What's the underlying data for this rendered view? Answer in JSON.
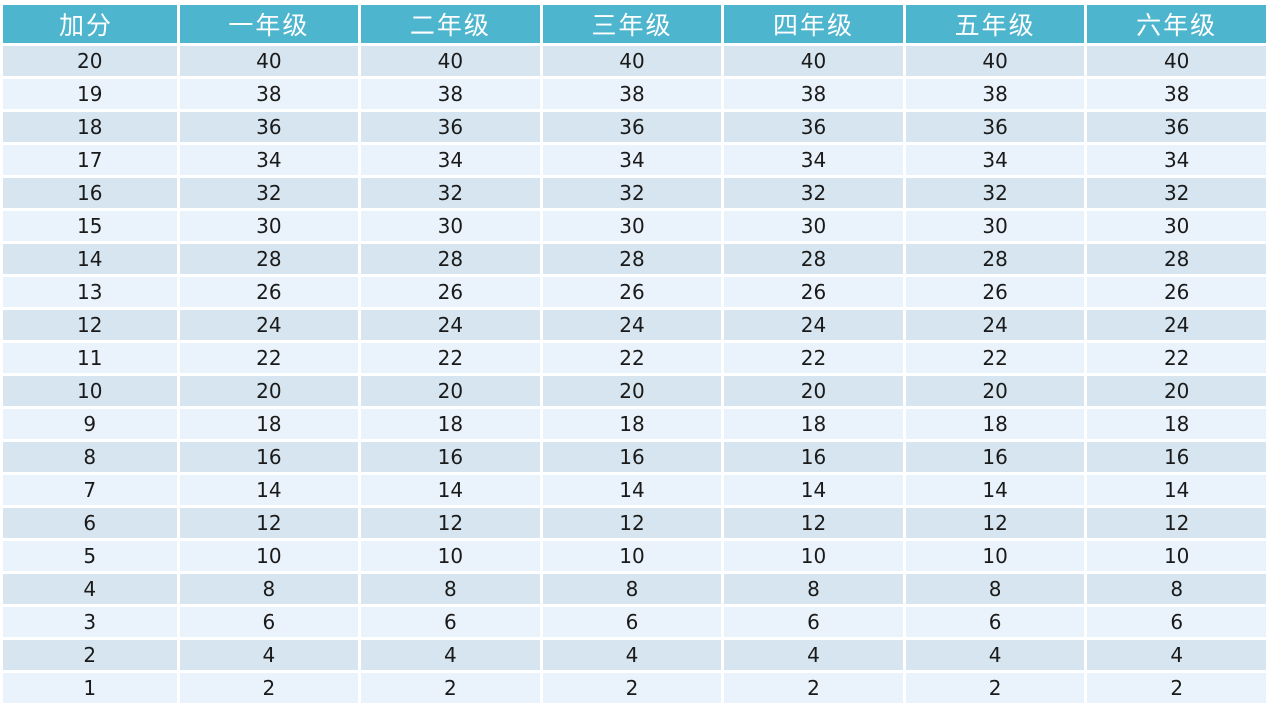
{
  "table": {
    "headers": [
      "加分",
      "一年级",
      "二年级",
      "三年级",
      "四年级",
      "五年级",
      "六年级"
    ],
    "rows": [
      [
        "20",
        "40",
        "40",
        "40",
        "40",
        "40",
        "40"
      ],
      [
        "19",
        "38",
        "38",
        "38",
        "38",
        "38",
        "38"
      ],
      [
        "18",
        "36",
        "36",
        "36",
        "36",
        "36",
        "36"
      ],
      [
        "17",
        "34",
        "34",
        "34",
        "34",
        "34",
        "34"
      ],
      [
        "16",
        "32",
        "32",
        "32",
        "32",
        "32",
        "32"
      ],
      [
        "15",
        "30",
        "30",
        "30",
        "30",
        "30",
        "30"
      ],
      [
        "14",
        "28",
        "28",
        "28",
        "28",
        "28",
        "28"
      ],
      [
        "13",
        "26",
        "26",
        "26",
        "26",
        "26",
        "26"
      ],
      [
        "12",
        "24",
        "24",
        "24",
        "24",
        "24",
        "24"
      ],
      [
        "11",
        "22",
        "22",
        "22",
        "22",
        "22",
        "22"
      ],
      [
        "10",
        "20",
        "20",
        "20",
        "20",
        "20",
        "20"
      ],
      [
        "9",
        "18",
        "18",
        "18",
        "18",
        "18",
        "18"
      ],
      [
        "8",
        "16",
        "16",
        "16",
        "16",
        "16",
        "16"
      ],
      [
        "7",
        "14",
        "14",
        "14",
        "14",
        "14",
        "14"
      ],
      [
        "6",
        "12",
        "12",
        "12",
        "12",
        "12",
        "12"
      ],
      [
        "5",
        "10",
        "10",
        "10",
        "10",
        "10",
        "10"
      ],
      [
        "4",
        "8",
        "8",
        "8",
        "8",
        "8",
        "8"
      ],
      [
        "3",
        "6",
        "6",
        "6",
        "6",
        "6",
        "6"
      ],
      [
        "2",
        "4",
        "4",
        "4",
        "4",
        "4",
        "4"
      ],
      [
        "1",
        "2",
        "2",
        "2",
        "2",
        "2",
        "2"
      ]
    ]
  },
  "colors": {
    "header_bg": "#4db5cd",
    "header_text": "#ffffff",
    "row_odd": "#d6e5ef",
    "row_even": "#eaf3fb"
  }
}
